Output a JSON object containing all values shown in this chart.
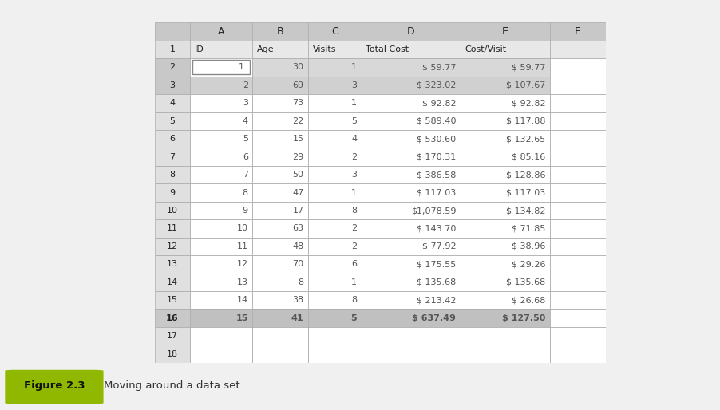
{
  "col_headers": [
    "",
    "A",
    "B",
    "C",
    "D",
    "E",
    "F"
  ],
  "header_row_cells": [
    "ID",
    "Age",
    "Visits",
    "Total Cost",
    "Cost/Visit",
    ""
  ],
  "data": [
    [
      "1",
      "30",
      "1",
      "$ 59.77",
      "$ 59.77"
    ],
    [
      "2",
      "69",
      "3",
      "$ 323.02",
      "$ 107.67"
    ],
    [
      "3",
      "73",
      "1",
      "$ 92.82",
      "$ 92.82"
    ],
    [
      "4",
      "22",
      "5",
      "$ 589.40",
      "$ 117.88"
    ],
    [
      "5",
      "15",
      "4",
      "$ 530.60",
      "$ 132.65"
    ],
    [
      "6",
      "29",
      "2",
      "$ 170.31",
      "$ 85.16"
    ],
    [
      "7",
      "50",
      "3",
      "$ 386.58",
      "$ 128.86"
    ],
    [
      "8",
      "47",
      "1",
      "$ 117.03",
      "$ 117.03"
    ],
    [
      "9",
      "17",
      "8",
      "$1,078.59",
      "$ 134.82"
    ],
    [
      "10",
      "63",
      "2",
      "$ 143.70",
      "$ 71.85"
    ],
    [
      "11",
      "48",
      "2",
      "$ 77.92",
      "$ 38.96"
    ],
    [
      "12",
      "70",
      "6",
      "$ 175.55",
      "$ 29.26"
    ],
    [
      "13",
      "8",
      "1",
      "$ 135.68",
      "$ 135.68"
    ],
    [
      "14",
      "38",
      "8",
      "$ 213.42",
      "$ 26.68"
    ],
    [
      "15",
      "41",
      "5",
      "$ 637.49",
      "$ 127.50"
    ]
  ],
  "col_header_bg": "#c8c8c8",
  "row_num_bg": "#e0e0e0",
  "row1_bg": "#e8e8e8",
  "row2_highlight_bg": "#d8d8d8",
  "row3_highlight_bg": "#d0d0d0",
  "row16_highlight_bg": "#c0c0c0",
  "normal_row_bg": "#ffffff",
  "figure_bg": "#f0f0f0",
  "grid_color": "#b0b0b0",
  "text_dark": "#222222",
  "text_data": "#555555",
  "caption_label": "Figure 2.3",
  "caption_label_bg": "#90b800",
  "caption_text": "Moving around a data set",
  "caption_fontsize": 10.5
}
